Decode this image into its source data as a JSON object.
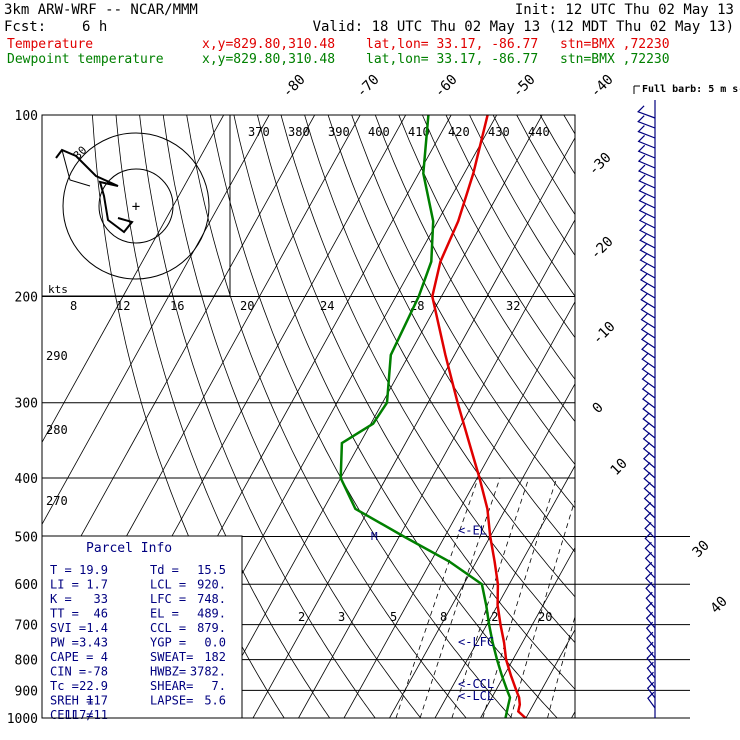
{
  "header": {
    "model": "3km ARW-WRF -- NCAR/MMM",
    "init": "Init: 12 UTC Thu 02 May 13",
    "fcst_label": "Fcst:",
    "fcst_value": "6 h",
    "valid": "Valid: 18 UTC Thu 02 May 13 (12 MDT Thu 02 May 13)",
    "temp_line": {
      "label": "Temperature",
      "xy": "x,y=829.80,310.48",
      "latlon": "lat,lon= 33.17, -86.77",
      "stn": "stn=BMX ,72230"
    },
    "dew_line": {
      "label": "Dewpoint temperature",
      "xy": "x,y=829.80,310.48",
      "latlon": "lat,lon= 33.17, -86.77",
      "stn": "stn=BMX ,72230"
    }
  },
  "colors": {
    "temperature": "#e00000",
    "dewpoint": "#008000",
    "wind": "#000080",
    "frame": "#000000"
  },
  "wind_barb_label": "Full barb: 5 m s-1",
  "parcel_info": {
    "title": "Parcel Info",
    "rows": [
      [
        "T  =",
        "19.9",
        "Td =",
        "15.5"
      ],
      [
        "LI =",
        "1.7",
        "LCL =",
        "920."
      ],
      [
        "K  =",
        "33",
        "LFC =",
        "748."
      ],
      [
        "TT =",
        "46",
        "EL =",
        "489."
      ],
      [
        "SVI =",
        "1.4",
        "CCL =",
        "879."
      ],
      [
        "PW =",
        "3.43",
        "YGP =",
        "0.0"
      ],
      [
        "CAPE =",
        "4",
        "SWEAT=",
        "182"
      ],
      [
        "CIN =",
        "-78",
        "HWBZ=",
        "3782."
      ],
      [
        "Tc =",
        "22.9",
        "SHEAR=",
        "7."
      ],
      [
        "SREH =",
        "117",
        "LAPSE=",
        "5.6"
      ],
      [
        "CELL =",
        "117/11",
        "",
        ""
      ]
    ]
  },
  "hodograph": {
    "speed_ring_label": "30",
    "units": "kts"
  },
  "level_markers": [
    {
      "label": "<-EL",
      "p": 489
    },
    {
      "label": "<-LFC",
      "p": 748
    },
    {
      "label": "<-CCL",
      "p": 879
    },
    {
      "label": "<-LCL",
      "p": 920
    }
  ],
  "chart_data": {
    "type": "line",
    "title": "",
    "xlabel": "",
    "ylabel": "",
    "y_scale": "log-pressure",
    "ylim": [
      1000,
      100
    ],
    "pressure_ticks": [
      100,
      200,
      300,
      400,
      500,
      600,
      700,
      800,
      900,
      1000
    ],
    "isotherm_labels": [
      -80,
      -70,
      -60,
      -50,
      -40,
      -30,
      -20,
      -10,
      0,
      10,
      30,
      40
    ],
    "theta_labels": [
      370,
      380,
      390,
      400,
      410,
      420,
      430,
      440
    ],
    "theta_labels_low": [
      290,
      280,
      270
    ],
    "mixing_ratio_labels_upper": [
      "8",
      "12",
      "16",
      "20",
      "24",
      "28",
      "32"
    ],
    "mixing_ratio_labels_lower": [
      "2",
      "3",
      "5",
      "8",
      "12",
      "20"
    ],
    "series": [
      {
        "name": "Temperature",
        "p": [
          1000,
          975,
          950,
          925,
          900,
          850,
          800,
          750,
          700,
          650,
          600,
          550,
          500,
          450,
          400,
          350,
          300,
          250,
          200,
          175,
          150,
          125,
          100
        ],
        "t": [
          19.9,
          17.5,
          17.0,
          16.0,
          14.5,
          11.5,
          8.5,
          6.0,
          3.0,
          0.0,
          -2.5,
          -6.0,
          -10.0,
          -14.0,
          -19.5,
          -26.0,
          -33.5,
          -42.0,
          -52.0,
          -54.5,
          -55.5,
          -58.0,
          -62.0
        ]
      },
      {
        "name": "Dewpoint temperature",
        "p": [
          1000,
          975,
          950,
          925,
          900,
          850,
          800,
          750,
          700,
          650,
          600,
          550,
          500,
          450,
          400,
          350,
          325,
          300,
          250,
          200,
          175,
          150,
          125,
          100
        ],
        "t": [
          15.5,
          15.0,
          14.5,
          14.0,
          12.5,
          9.5,
          6.5,
          3.5,
          0.5,
          -2.5,
          -6.0,
          -16.0,
          -29.0,
          -43.0,
          -50.0,
          -54.0,
          -49.5,
          -49.0,
          -54.0,
          -55.0,
          -56.5,
          -61.0,
          -69.0,
          -75.0
        ]
      }
    ]
  }
}
